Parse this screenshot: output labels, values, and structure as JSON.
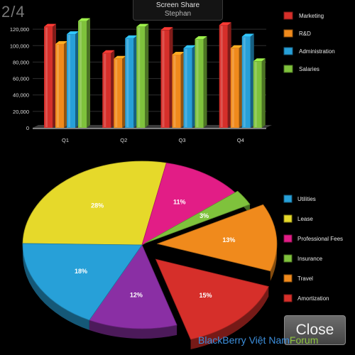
{
  "page_indicator": "2/4",
  "screen_share": {
    "title": "Screen Share",
    "user": "Stephan"
  },
  "close_button": {
    "label": "Close"
  },
  "watermark": {
    "brand": "BlackBerry Việt Nam",
    "suffix": "Forum"
  },
  "chart_data": [
    {
      "type": "bar",
      "categories": [
        "Q1",
        "Q2",
        "Q3",
        "Q4"
      ],
      "ylim": [
        0,
        140000
      ],
      "yticks": [
        0,
        20000,
        40000,
        60000,
        80000,
        100000,
        120000
      ],
      "ytick_labels": [
        "0",
        "20,000",
        "40,000",
        "60,000",
        "80,000",
        "100,000",
        "120,000"
      ],
      "series": [
        {
          "name": "Marketing",
          "color": "#d62f2a",
          "values": [
            123000,
            91000,
            119000,
            125000
          ]
        },
        {
          "name": "R&D",
          "color": "#f08a1c",
          "values": [
            102000,
            84000,
            89000,
            97000
          ]
        },
        {
          "name": "Administration",
          "color": "#27a0d8",
          "values": [
            114000,
            109000,
            97000,
            111000
          ]
        },
        {
          "name": "Salaries",
          "color": "#7fc23c",
          "values": [
            130000,
            123000,
            108000,
            81000
          ]
        }
      ]
    },
    {
      "type": "pie",
      "slices": [
        {
          "name": "Utilities",
          "value": 18,
          "label": "18%",
          "color": "#27a0d8"
        },
        {
          "name": "Lease",
          "value": 28,
          "label": "28%",
          "color": "#e6d92a"
        },
        {
          "name": "Professional Fees",
          "value": 11,
          "label": "11%",
          "color": "#e21d86"
        },
        {
          "name": "Insurance",
          "value": 3,
          "label": "3%",
          "color": "#7fc23c"
        },
        {
          "name": "Travel",
          "value": 13,
          "label": "13%",
          "color": "#f08a1c"
        },
        {
          "name": "Amortization",
          "value": 15,
          "label": "15%",
          "color": "#d62f2a"
        },
        {
          "name": "",
          "value": 12,
          "label": "12%",
          "color": "#8a2fa4"
        }
      ],
      "legend": [
        "Utilities",
        "Lease",
        "Professional Fees",
        "Insurance",
        "Travel",
        "Amortization"
      ]
    }
  ]
}
